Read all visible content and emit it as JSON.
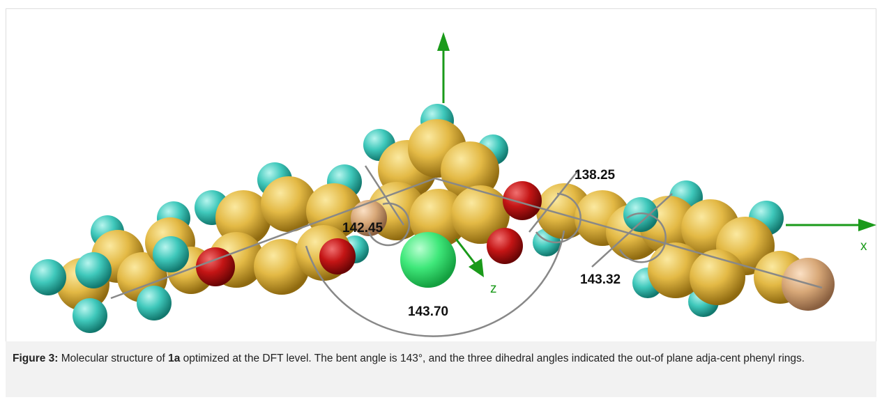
{
  "figure": {
    "angle_labels": [
      "142.45",
      "138.25",
      "143.32",
      "143.70"
    ],
    "axis_labels": [
      "x",
      "z"
    ]
  },
  "caption": {
    "label": "Figure 3:",
    "text_1": "Molecular structure of",
    "compound": "1a",
    "text_2": "optimized at the DFT level. The bent angle is 143°, and the three dihedral angles indicated the out-of plane adja-cent phenyl rings."
  }
}
